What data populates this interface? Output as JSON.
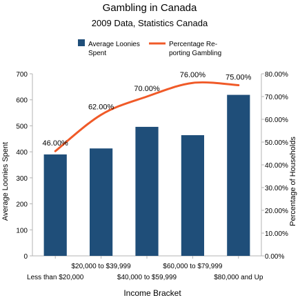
{
  "chart_data": {
    "type": "bar",
    "title": "Gambling in Canada",
    "subtitle": "2009 Data, Statistics Canada",
    "categories": [
      "Less than $20,000",
      "$20,000 to $39,999",
      "$40,000 to $59,999",
      "$60,000 to $79,999",
      "$80,000 and Up"
    ],
    "xlabel": "Income Bracket",
    "ylabel": "Average Loonies Spent",
    "y2label": "Percentage of Households",
    "ylim": [
      0,
      700
    ],
    "y2lim": [
      0,
      80
    ],
    "yticks": [
      "0",
      "100",
      "200",
      "300",
      "400",
      "500",
      "600",
      "700"
    ],
    "y2ticks": [
      "0.00%",
      "10.00%",
      "20.00%",
      "30.00%",
      "40.00%",
      "50.00%",
      "60.00%",
      "70.00%",
      "80.00%"
    ],
    "grid": false,
    "legend_position": "top",
    "series": [
      {
        "name_lines": [
          "Average Loonies",
          "Spent"
        ],
        "type": "bar",
        "axis": "left",
        "color": "#1f4e79",
        "values": [
          390,
          413,
          496,
          464,
          619
        ]
      },
      {
        "name_lines": [
          "Percentage Re-",
          "porting Gambling"
        ],
        "type": "line",
        "axis": "right",
        "color": "#f05a28",
        "values": [
          46,
          62,
          70,
          76,
          75
        ],
        "labels": [
          "46.00%",
          "62.00%",
          "70.00%",
          "76.00%",
          "75.00%"
        ]
      }
    ]
  }
}
